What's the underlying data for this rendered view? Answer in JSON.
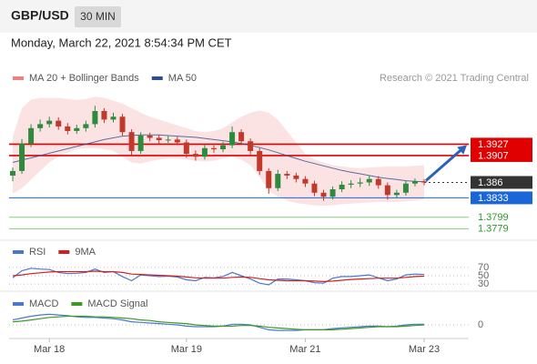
{
  "header": {
    "title": "GBP/USD",
    "interval": "30 MIN",
    "timestamp": "Monday, March 22, 2021 8:54:34 PM CET",
    "credit": "Research © 2021 Trading Central"
  },
  "chart_data": [
    {
      "type": "candlestick",
      "categories": [
        null,
        null,
        null,
        null,
        "Mar 18",
        null,
        null,
        null,
        null,
        null,
        null,
        null,
        null,
        null,
        null,
        null,
        null,
        null,
        null,
        "Mar 19",
        null,
        null,
        null,
        null,
        null,
        null,
        null,
        null,
        null,
        null,
        null,
        null,
        "Mar 21",
        null,
        null,
        null,
        null,
        null,
        null,
        null,
        null,
        null,
        null,
        null,
        null,
        "Mar 23"
      ],
      "open": [
        1.3872,
        1.388,
        1.3928,
        1.3955,
        1.3962,
        1.3968,
        1.3958,
        1.395,
        1.3955,
        1.3962,
        1.3985,
        1.397,
        1.3975,
        1.3948,
        1.3915,
        1.3942,
        1.3938,
        1.3934,
        1.3935,
        1.393,
        1.391,
        1.3905,
        1.392,
        1.3918,
        1.3925,
        1.3948,
        1.3932,
        1.3915,
        1.388,
        1.385,
        1.3875,
        1.3872,
        1.3866,
        1.3858,
        1.3842,
        1.3835,
        1.3848,
        1.3856,
        1.3858,
        1.386,
        1.3866,
        1.3855,
        1.3838,
        1.3842,
        1.3858,
        1.3862
      ],
      "high": [
        1.3886,
        1.3936,
        1.3962,
        1.397,
        1.3975,
        1.3974,
        1.3964,
        1.3961,
        1.3968,
        1.3994,
        1.399,
        1.3982,
        1.398,
        1.3953,
        1.3948,
        1.3947,
        1.3943,
        1.3941,
        1.394,
        1.3935,
        1.3916,
        1.3926,
        1.3925,
        1.3931,
        1.3958,
        1.3953,
        1.3937,
        1.392,
        1.3885,
        1.3882,
        1.388,
        1.3877,
        1.3871,
        1.3863,
        1.3847,
        1.3853,
        1.3862,
        1.3864,
        1.3868,
        1.3872,
        1.3871,
        1.386,
        1.3847,
        1.3863,
        1.3867,
        1.3866
      ],
      "low": [
        1.3862,
        1.3875,
        1.3922,
        1.3949,
        1.3956,
        1.3952,
        1.3944,
        1.3945,
        1.3949,
        1.3956,
        1.3964,
        1.3965,
        1.3942,
        1.3908,
        1.391,
        1.3932,
        1.3928,
        1.3929,
        1.3925,
        1.3903,
        1.3898,
        1.39,
        1.3912,
        1.3913,
        1.392,
        1.3927,
        1.3909,
        1.3873,
        1.384,
        1.3845,
        1.3866,
        1.386,
        1.3852,
        1.3836,
        1.3828,
        1.383,
        1.3843,
        1.385,
        1.3852,
        1.3854,
        1.3849,
        1.383,
        1.3832,
        1.3837,
        1.3853,
        1.3855
      ],
      "close": [
        1.388,
        1.3928,
        1.3955,
        1.3962,
        1.3968,
        1.3958,
        1.395,
        1.3955,
        1.3962,
        1.3985,
        1.397,
        1.3975,
        1.3948,
        1.3915,
        1.3942,
        1.3938,
        1.3934,
        1.3935,
        1.393,
        1.391,
        1.3905,
        1.392,
        1.3918,
        1.3925,
        1.3948,
        1.3932,
        1.3915,
        1.388,
        1.385,
        1.3875,
        1.3872,
        1.3866,
        1.3858,
        1.3842,
        1.3835,
        1.3848,
        1.3856,
        1.3858,
        1.386,
        1.3866,
        1.3855,
        1.3838,
        1.3842,
        1.3858,
        1.3862,
        1.386
      ],
      "up_color": "#2e8b3e",
      "down_color": "#c0392b",
      "bands": {
        "name": "MA 20 + Bollinger Bands",
        "color": "#f08080",
        "upper": [
          1.394,
          1.399,
          1.4005,
          1.4008,
          1.4008,
          1.4008,
          1.4006,
          1.4004,
          1.4006,
          1.401,
          1.4008,
          1.4003,
          1.3998,
          1.399,
          1.3982,
          1.3975,
          1.397,
          1.3965,
          1.396,
          1.3955,
          1.395,
          1.3948,
          1.395,
          1.3955,
          1.3965,
          1.3975,
          1.3982,
          1.3986,
          1.3982,
          1.397,
          1.395,
          1.393,
          1.391,
          1.39,
          1.3895,
          1.389,
          1.3888,
          1.3886,
          1.3885,
          1.3886,
          1.3887,
          1.3888,
          1.3888,
          1.3888,
          1.3889,
          1.389
        ],
        "lower": [
          1.384,
          1.385,
          1.3865,
          1.388,
          1.3895,
          1.3905,
          1.3912,
          1.3918,
          1.392,
          1.392,
          1.3918,
          1.3915,
          1.3905,
          1.3895,
          1.3893,
          1.3897,
          1.39,
          1.3902,
          1.3902,
          1.39,
          1.3898,
          1.3897,
          1.3898,
          1.3902,
          1.3905,
          1.39,
          1.389,
          1.387,
          1.3845,
          1.3835,
          1.3828,
          1.3824,
          1.3822,
          1.382,
          1.3819,
          1.382,
          1.3822,
          1.3823,
          1.3824,
          1.3825,
          1.3826,
          1.3826,
          1.3826,
          1.3827,
          1.3828,
          1.383
        ]
      },
      "series": [
        {
          "name": "MA 50",
          "color": "#2c4f8c",
          "values": [
            1.3895,
            1.3899,
            1.3903,
            1.3907,
            1.3911,
            1.3915,
            1.3919,
            1.3923,
            1.3927,
            1.3931,
            1.3935,
            1.3938,
            1.3941,
            1.3942,
            1.3943,
            1.3943,
            1.3943,
            1.3942,
            1.3941,
            1.394,
            1.3939,
            1.3937,
            1.3935,
            1.3933,
            1.3931,
            1.3928,
            1.3925,
            1.3921,
            1.3917,
            1.3912,
            1.3907,
            1.3902,
            1.3897,
            1.3893,
            1.3889,
            1.3885,
            1.3881,
            1.3878,
            1.3875,
            1.3872,
            1.3869,
            1.3867,
            1.3865,
            1.3863,
            1.3862,
            1.3861
          ]
        }
      ],
      "levels": [
        {
          "value": 1.3927,
          "color": "#e00000",
          "label_style": "box",
          "line": "solid"
        },
        {
          "value": 1.3907,
          "color": "#e00000",
          "label_style": "box",
          "line": "solid"
        },
        {
          "value": 1.386,
          "color": "#333333",
          "label_style": "box",
          "line": "dotted"
        },
        {
          "value": 1.3833,
          "color": "#1a66d9",
          "label_style": "box",
          "line": "solid"
        },
        {
          "value": 1.3799,
          "color": "#2a9a2a",
          "label_style": "text",
          "line": "solid"
        },
        {
          "value": 1.3779,
          "color": "#2a9a2a",
          "label_style": "text",
          "line": "solid"
        }
      ],
      "ylim": [
        1.3762,
        1.402
      ]
    },
    {
      "type": "line",
      "series": [
        {
          "name": "RSI",
          "color": "#4a78d0",
          "values": [
            45,
            62,
            68,
            66,
            65,
            58,
            55,
            56,
            58,
            66,
            58,
            60,
            48,
            38,
            52,
            50,
            48,
            49,
            47,
            40,
            38,
            46,
            45,
            48,
            58,
            50,
            42,
            32,
            28,
            42,
            42,
            40,
            38,
            33,
            32,
            44,
            48,
            48,
            50,
            52,
            45,
            38,
            42,
            52,
            54,
            53
          ]
        },
        {
          "name": "9MA",
          "color": "#d02020",
          "values": [
            50,
            52,
            55,
            57,
            59,
            60,
            60,
            60,
            60,
            61,
            60,
            60,
            58,
            54,
            53,
            52,
            51,
            50,
            49,
            47,
            45,
            44,
            44,
            44,
            46,
            47,
            46,
            43,
            40,
            39,
            38,
            38,
            38,
            37,
            36,
            37,
            39,
            41,
            42,
            43,
            44,
            44,
            44,
            46,
            48,
            49
          ]
        }
      ],
      "ylim": [
        17,
        83
      ],
      "yticks": [
        70,
        50,
        30
      ]
    },
    {
      "type": "line",
      "series": [
        {
          "name": "MACD",
          "color": "#4a78d0",
          "values": [
            0.0008,
            0.0011,
            0.0014,
            0.0016,
            0.0017,
            0.0016,
            0.0015,
            0.0013,
            0.0012,
            0.0012,
            0.0011,
            0.001,
            0.0008,
            0.0005,
            0.0004,
            0.0003,
            0.0002,
            0.0001,
            0.0,
            -0.0002,
            -0.0003,
            -0.0003,
            -0.0003,
            -0.0002,
            0.0001,
            0.0001,
            0.0,
            -0.0004,
            -0.0008,
            -0.0009,
            -0.0009,
            -0.0009,
            -0.0008,
            -0.0008,
            -0.0008,
            -0.0006,
            -0.0005,
            -0.0004,
            -0.0003,
            -0.0002,
            -0.0002,
            -0.0003,
            -0.0002,
            0.0,
            0.0001,
            0.0001
          ]
        },
        {
          "name": "MACD Signal",
          "color": "#3a9a20",
          "values": [
            0.0005,
            0.0006,
            0.0008,
            0.001,
            0.0012,
            0.0013,
            0.0014,
            0.0014,
            0.0014,
            0.0013,
            0.0013,
            0.0012,
            0.0011,
            0.001,
            0.0008,
            0.0007,
            0.0005,
            0.0004,
            0.0003,
            0.0002,
            0.0,
            -0.0001,
            -0.0002,
            -0.0002,
            -0.0002,
            -0.0001,
            -0.0001,
            -0.0002,
            -0.0004,
            -0.0005,
            -0.0006,
            -0.0007,
            -0.0008,
            -0.0008,
            -0.0008,
            -0.0008,
            -0.0007,
            -0.0006,
            -0.0005,
            -0.0004,
            -0.0003,
            -0.0003,
            -0.0003,
            -0.0002,
            -0.0001,
            0.0
          ]
        }
      ],
      "ylim": [
        -0.0025,
        0.0025
      ],
      "yticks": [
        0
      ]
    }
  ]
}
